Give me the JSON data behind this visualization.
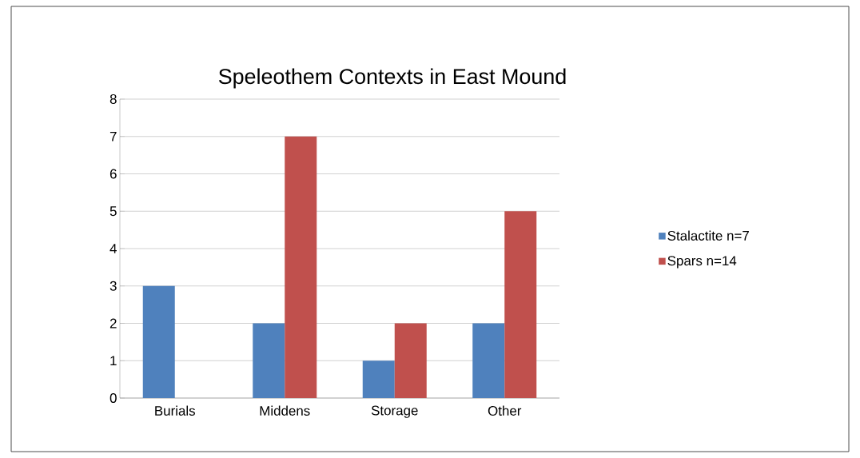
{
  "chart_data": {
    "type": "bar",
    "title": "Speleothem  Contexts in East Mound",
    "categories": [
      "Burials",
      "Middens",
      "Storage",
      "Other"
    ],
    "series": [
      {
        "name": "Stalactite n=7",
        "color": "#4f81bd",
        "values": [
          3,
          2,
          1,
          2
        ]
      },
      {
        "name": "Spars n=14",
        "color": "#c0504d",
        "values": [
          0,
          7,
          2,
          5
        ]
      }
    ],
    "ylim": [
      0,
      8
    ],
    "yticks": [
      0,
      1,
      2,
      3,
      4,
      5,
      6,
      7,
      8
    ],
    "grid": "y",
    "legend": "right"
  }
}
